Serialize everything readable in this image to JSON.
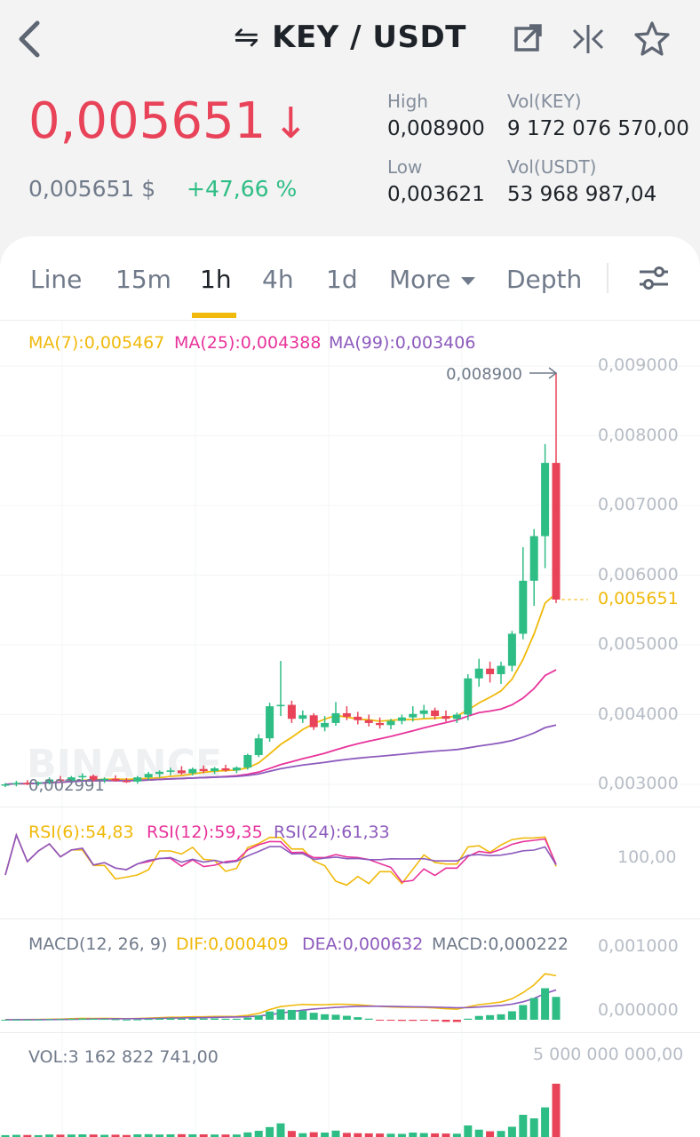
{
  "header": {
    "pair": "KEY / USDT",
    "swap_icon": "⇋",
    "icons": [
      "back-icon",
      "external-link-icon",
      "compare-icon",
      "star-icon"
    ]
  },
  "ticker": {
    "price": "0,005651",
    "price_arrow": "↓",
    "price_usd": "0,005651 $",
    "change": "+47,66 %",
    "high_label": "High",
    "high": "0,008900",
    "low_label": "Low",
    "low": "0,003621",
    "vol_base_label": "Vol(KEY)",
    "vol_base": "9 172 076 570,00",
    "vol_quote_label": "Vol(USDT)",
    "vol_quote": "53 968 987,04"
  },
  "tabs": [
    {
      "label": "Line",
      "active": false
    },
    {
      "label": "15m",
      "active": false
    },
    {
      "label": "1h",
      "active": true
    },
    {
      "label": "4h",
      "active": false
    },
    {
      "label": "1d",
      "active": false
    },
    {
      "label": "More",
      "active": false
    },
    {
      "label": "Depth",
      "active": false
    }
  ],
  "colors": {
    "up": "#2ebd85",
    "down": "#e84359",
    "ma7": "#f0b90b",
    "ma25": "#e8339b",
    "ma99": "#8d5bbd",
    "axis": "#b7bdc6"
  },
  "main_chart": {
    "ma7": "MA(7):0,005467",
    "ma25": "MA(25):0,004388",
    "ma99": "MA(99):0,003406",
    "max_label": "0,008900",
    "min_label": "0,002991",
    "last_price_label": "0,005651",
    "watermark": "BINANCE",
    "y_ticks": [
      "0,009000",
      "0,008000",
      "0,007000",
      "0,006000",
      "0,005000",
      "0,004000",
      "0,003000"
    ]
  },
  "rsi": {
    "rsi6": "RSI(6):54,83",
    "rsi12": "RSI(12):59,35",
    "rsi24": "RSI(24):61,33",
    "tick": "100,00"
  },
  "macd": {
    "title": "MACD(12, 26, 9)",
    "dif": "DIF:0,000409",
    "dea": "DEA:0,000632",
    "macd": "MACD:0,000222",
    "ticks": [
      "0,001000",
      "0,000000"
    ]
  },
  "volume": {
    "label": "VOL:3 162 822 741,00",
    "tick": "5 000 000 000,00"
  },
  "chart_data": {
    "type": "candlestick",
    "ylim": [
      0.003,
      0.009
    ],
    "candles": [
      {
        "o": 0.00299,
        "h": 0.00302,
        "l": 0.00296,
        "c": 0.003
      },
      {
        "o": 0.003,
        "h": 0.00305,
        "l": 0.00297,
        "c": 0.00302
      },
      {
        "o": 0.00302,
        "h": 0.00306,
        "l": 0.00299,
        "c": 0.00301
      },
      {
        "o": 0.00301,
        "h": 0.00304,
        "l": 0.00298,
        "c": 0.00303
      },
      {
        "o": 0.00303,
        "h": 0.0031,
        "l": 0.003,
        "c": 0.00307
      },
      {
        "o": 0.00307,
        "h": 0.00312,
        "l": 0.00303,
        "c": 0.00305
      },
      {
        "o": 0.00305,
        "h": 0.00312,
        "l": 0.00302,
        "c": 0.0031
      },
      {
        "o": 0.0031,
        "h": 0.00316,
        "l": 0.00305,
        "c": 0.00312
      },
      {
        "o": 0.00312,
        "h": 0.00314,
        "l": 0.00304,
        "c": 0.00306
      },
      {
        "o": 0.00306,
        "h": 0.0031,
        "l": 0.00302,
        "c": 0.00308
      },
      {
        "o": 0.00308,
        "h": 0.00313,
        "l": 0.00304,
        "c": 0.00305
      },
      {
        "o": 0.00305,
        "h": 0.00309,
        "l": 0.00302,
        "c": 0.00304
      },
      {
        "o": 0.00304,
        "h": 0.00312,
        "l": 0.00301,
        "c": 0.0031
      },
      {
        "o": 0.0031,
        "h": 0.00318,
        "l": 0.00306,
        "c": 0.00315
      },
      {
        "o": 0.00315,
        "h": 0.0032,
        "l": 0.0031,
        "c": 0.00318
      },
      {
        "o": 0.00318,
        "h": 0.00324,
        "l": 0.00313,
        "c": 0.0032
      },
      {
        "o": 0.0032,
        "h": 0.00326,
        "l": 0.00314,
        "c": 0.00316
      },
      {
        "o": 0.00316,
        "h": 0.00324,
        "l": 0.00313,
        "c": 0.00322
      },
      {
        "o": 0.00322,
        "h": 0.00327,
        "l": 0.00316,
        "c": 0.00319
      },
      {
        "o": 0.00319,
        "h": 0.00325,
        "l": 0.00315,
        "c": 0.00323
      },
      {
        "o": 0.00323,
        "h": 0.00328,
        "l": 0.00318,
        "c": 0.0032
      },
      {
        "o": 0.0032,
        "h": 0.00326,
        "l": 0.00316,
        "c": 0.00324
      },
      {
        "o": 0.00324,
        "h": 0.00344,
        "l": 0.00321,
        "c": 0.00342
      },
      {
        "o": 0.00342,
        "h": 0.00372,
        "l": 0.00339,
        "c": 0.00366
      },
      {
        "o": 0.00366,
        "h": 0.00417,
        "l": 0.00361,
        "c": 0.00412
      },
      {
        "o": 0.00412,
        "h": 0.00477,
        "l": 0.00398,
        "c": 0.00414
      },
      {
        "o": 0.00414,
        "h": 0.0042,
        "l": 0.00388,
        "c": 0.00394
      },
      {
        "o": 0.00394,
        "h": 0.00406,
        "l": 0.00388,
        "c": 0.00399
      },
      {
        "o": 0.00399,
        "h": 0.00402,
        "l": 0.00378,
        "c": 0.00382
      },
      {
        "o": 0.00382,
        "h": 0.00398,
        "l": 0.00376,
        "c": 0.00388
      },
      {
        "o": 0.00388,
        "h": 0.00418,
        "l": 0.00384,
        "c": 0.00402
      },
      {
        "o": 0.00402,
        "h": 0.00412,
        "l": 0.00392,
        "c": 0.00397
      },
      {
        "o": 0.00397,
        "h": 0.00404,
        "l": 0.00386,
        "c": 0.00392
      },
      {
        "o": 0.00392,
        "h": 0.004,
        "l": 0.00383,
        "c": 0.00388
      },
      {
        "o": 0.00388,
        "h": 0.00396,
        "l": 0.0038,
        "c": 0.00385
      },
      {
        "o": 0.00385,
        "h": 0.00394,
        "l": 0.00379,
        "c": 0.00391
      },
      {
        "o": 0.00391,
        "h": 0.004,
        "l": 0.00386,
        "c": 0.00396
      },
      {
        "o": 0.00396,
        "h": 0.00412,
        "l": 0.0039,
        "c": 0.00401
      },
      {
        "o": 0.00401,
        "h": 0.00414,
        "l": 0.00395,
        "c": 0.00406
      },
      {
        "o": 0.00406,
        "h": 0.0041,
        "l": 0.00393,
        "c": 0.00398
      },
      {
        "o": 0.00398,
        "h": 0.00406,
        "l": 0.0039,
        "c": 0.00394
      },
      {
        "o": 0.00394,
        "h": 0.00403,
        "l": 0.00388,
        "c": 0.004
      },
      {
        "o": 0.004,
        "h": 0.00458,
        "l": 0.00392,
        "c": 0.00452
      },
      {
        "o": 0.00452,
        "h": 0.0048,
        "l": 0.0044,
        "c": 0.00466
      },
      {
        "o": 0.00466,
        "h": 0.00476,
        "l": 0.00446,
        "c": 0.00458
      },
      {
        "o": 0.00458,
        "h": 0.00476,
        "l": 0.00444,
        "c": 0.0047
      },
      {
        "o": 0.0047,
        "h": 0.0052,
        "l": 0.00462,
        "c": 0.00516
      },
      {
        "o": 0.00516,
        "h": 0.0064,
        "l": 0.00508,
        "c": 0.00592
      },
      {
        "o": 0.00592,
        "h": 0.00666,
        "l": 0.00556,
        "c": 0.00656
      },
      {
        "o": 0.00656,
        "h": 0.00788,
        "l": 0.0061,
        "c": 0.00761
      },
      {
        "o": 0.00761,
        "h": 0.0089,
        "l": 0.0056,
        "c": 0.00565
      }
    ],
    "volume_max_label": "5 000 000 000,00"
  }
}
